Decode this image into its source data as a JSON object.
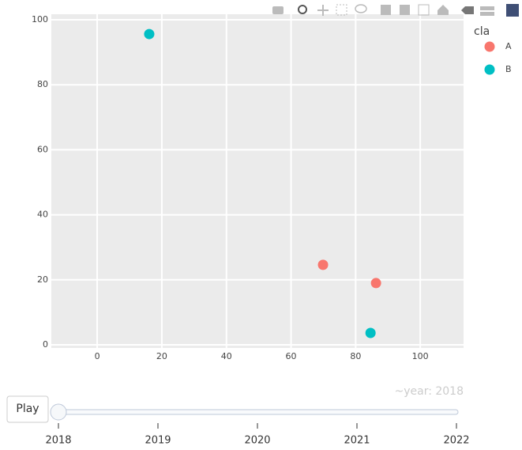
{
  "chart_data": {
    "type": "scatter",
    "legend_title": "cla",
    "series": [
      {
        "name": "A",
        "color": "#F8766D",
        "x": [
          69.9,
          86.3
        ],
        "values": [
          24.6,
          19.0
        ]
      },
      {
        "name": "B",
        "color": "#00BFC4",
        "x": [
          16.1,
          84.6
        ],
        "values": [
          95.6,
          3.65
        ]
      }
    ],
    "xlim": [
      -14.2,
      113.4
    ],
    "xticks": [
      0,
      20,
      40,
      60,
      80,
      100
    ],
    "ylim": [
      -0.97,
      101.7
    ],
    "yticks": [
      0,
      20,
      40,
      60,
      80,
      100
    ],
    "grid": true
  },
  "slider": {
    "current_label": "~year: 2018",
    "button": "Play",
    "steps": [
      2018,
      2019,
      2020,
      2021,
      2022
    ]
  }
}
